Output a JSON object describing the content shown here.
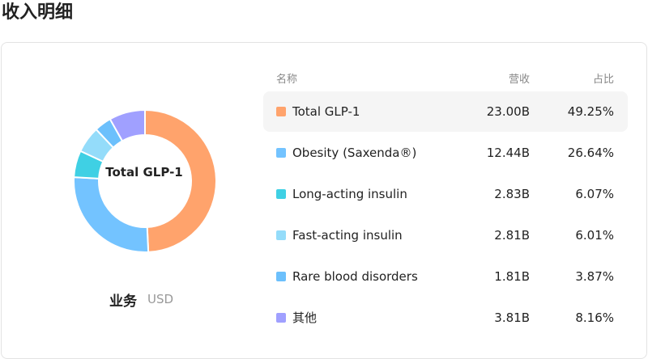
{
  "header": {
    "title": "收入明细"
  },
  "chart_data": {
    "type": "pie",
    "donut": true,
    "center_label": "Total GLP-1",
    "caption": "业务",
    "unit": "USD",
    "columns": [
      "名称",
      "营收",
      "占比"
    ],
    "categories": [
      "Total GLP-1",
      "Obesity (Saxenda®)",
      "Long-acting insulin",
      "Fast-acting insulin",
      "Rare blood disorders",
      "其他"
    ],
    "colors": [
      "#ffa36c",
      "#73c3ff",
      "#3fd0e4",
      "#94dcfa",
      "#6cc0fc",
      "#a0a0ff"
    ],
    "values": [
      49.25,
      26.64,
      6.07,
      6.01,
      3.87,
      8.16
    ],
    "value_labels": [
      "49.25%",
      "26.64%",
      "6.07%",
      "6.01%",
      "3.87%",
      "8.16%"
    ],
    "revenue_labels": [
      "23.00B",
      "12.44B",
      "2.83B",
      "2.81B",
      "1.81B",
      "3.81B"
    ],
    "highlight": 0
  }
}
